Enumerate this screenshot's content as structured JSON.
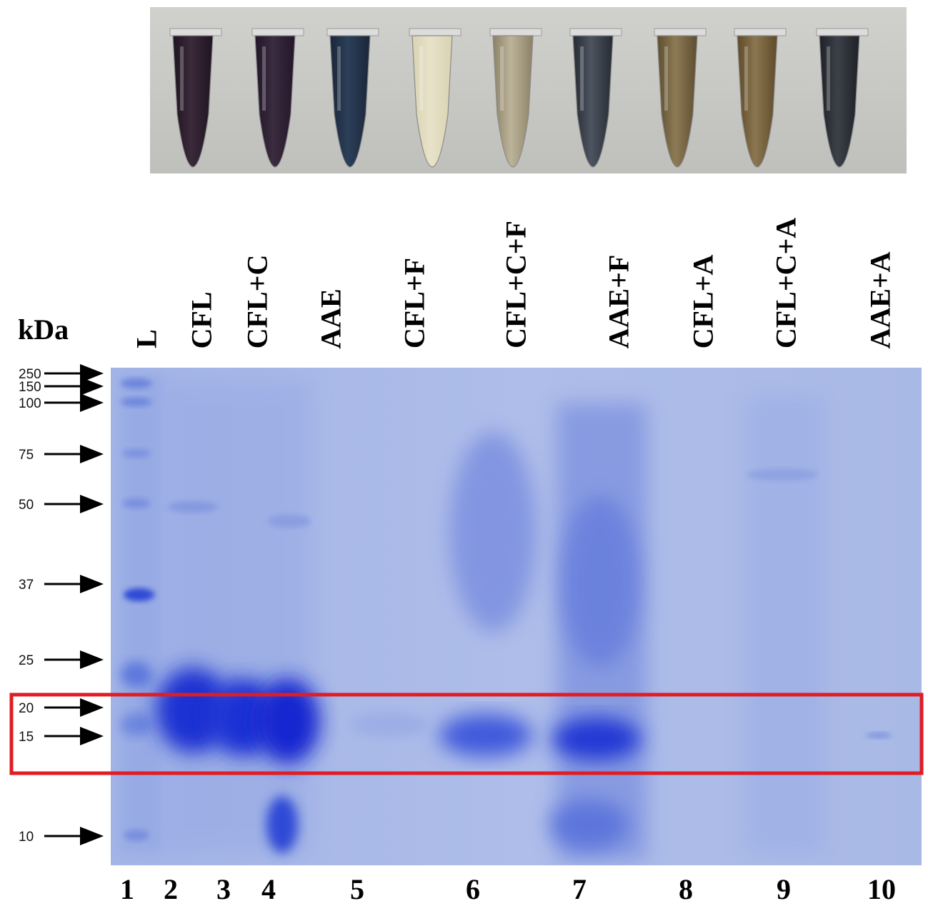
{
  "y_axis_unit": "kDa",
  "lane_labels": [
    "L",
    "CFL",
    "CFL+C",
    "AAE",
    "CFL+F",
    "CFL+C+F",
    "AAE+F",
    "CFL+A",
    "CFL+C+A",
    "AAE+A"
  ],
  "lane_numbers": [
    "1",
    "2",
    "3",
    "4",
    "5",
    "6",
    "7",
    "8",
    "9",
    "10"
  ],
  "markers": [
    "250",
    "150",
    "100",
    "75",
    "50",
    "37",
    "25",
    "20",
    "15",
    "10"
  ],
  "colors": {
    "gel_background": "#a8b8e8",
    "band_strong": "#1a2fd0",
    "highlight_box": "#e01c24",
    "photo_background": "#c9cac6"
  }
}
